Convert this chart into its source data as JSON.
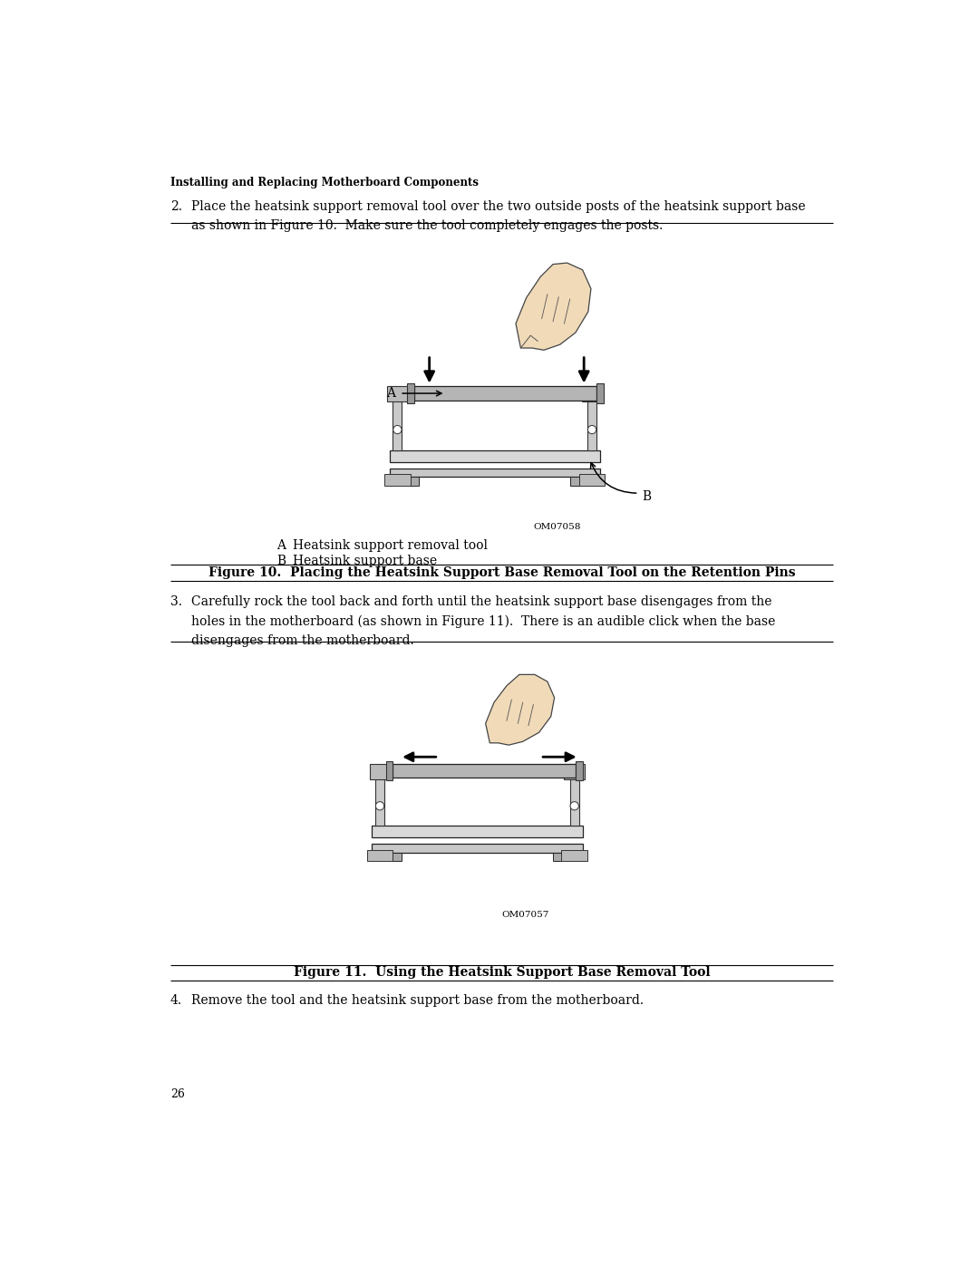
{
  "bg_color": "#ffffff",
  "page_width": 10.8,
  "page_height": 13.97,
  "dpi": 100,
  "header_text": "Installing and Replacing Motherboard Components",
  "step2_text_line1": "Place the heatsink support removal tool over the two outside posts of the heatsink support base",
  "step2_text_line2": "as shown in Figure 10.  Make sure the tool completely engages the posts.",
  "step3_text_line1": "Carefully rock the tool back and forth until the heatsink support base disengages from the",
  "step3_text_line2": "holes in the motherboard (as shown in Figure 11).  There is an audible click when the base",
  "step3_text_line3": "disengages from the motherboard.",
  "step4_text": "Remove the tool and the heatsink support base from the motherboard.",
  "fig10_caption": "Figure 10.  Placing the Heatsink Support Base Removal Tool on the Retention Pins",
  "fig11_caption": "Figure 11.  Using the Heatsink Support Base Removal Tool",
  "label_A_desc": "Heatsink support removal tool",
  "label_B_desc": "Heatsink support base",
  "om07058": "OM07058",
  "om07057": "OM07057",
  "page_number": "26",
  "lm": 0.68,
  "rm": 10.12
}
